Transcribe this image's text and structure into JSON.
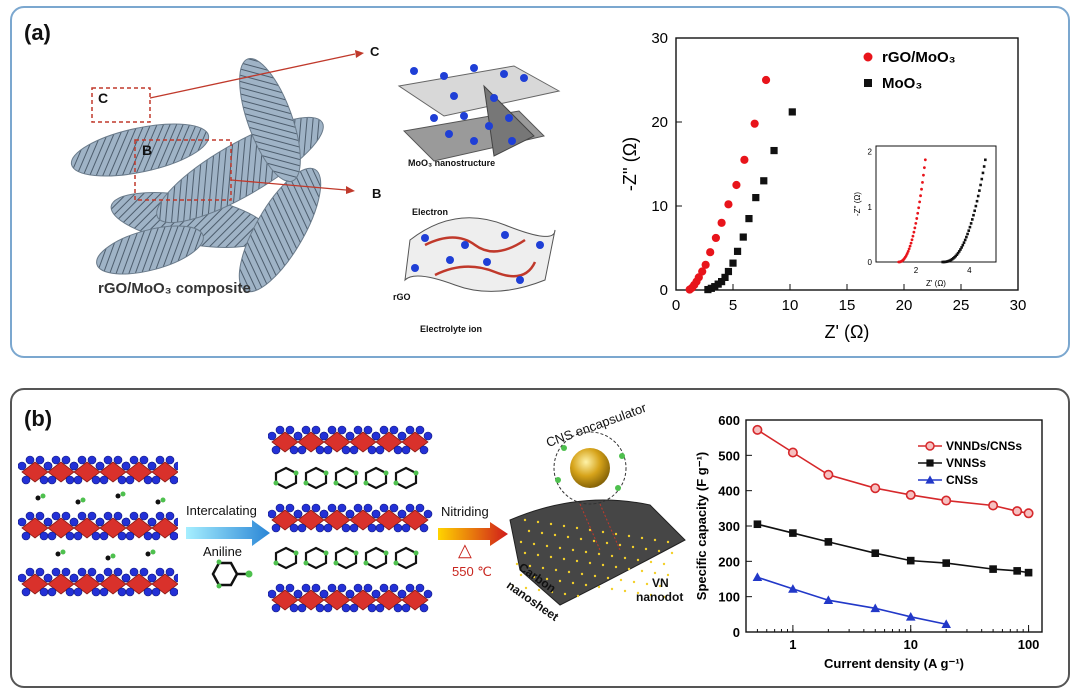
{
  "panel_a": {
    "label": "(a)",
    "composite_caption": "rGO/MoO₃ composite",
    "box_c": "C",
    "box_b": "B",
    "callout_c": "C",
    "callout_b": "B",
    "mo_caption": "MoO₃ nanostructure",
    "electron_label": "Electron",
    "rgo_label": "rGO",
    "ion_label": "Electrolyte ion",
    "inset": {
      "xlabel": "Z' (Ω)",
      "ylabel": "-Z'' (Ω)",
      "xticks": [
        "2",
        "4"
      ],
      "yticks": [
        "0",
        "1",
        "2"
      ]
    }
  },
  "panel_b": {
    "label": "(b)",
    "arrow1_top": "Intercalating",
    "arrow1_bottom": "Aniline",
    "arrow2_top": "Nitriding",
    "delta_symbol": "△",
    "temperature": "550 ℃",
    "cns_label": "CNS encapsulator",
    "carbon_label_1": "Carbon",
    "carbon_label_2": "nanosheet",
    "vn_label_1": "VN",
    "vn_label_2": "nanodot"
  },
  "chart_data": [
    {
      "type": "scatter",
      "xlabel": "Z' (Ω)",
      "ylabel": "-Z'' (Ω)",
      "xlim": [
        0,
        30
      ],
      "ylim": [
        0,
        30
      ],
      "xticks": [
        0,
        5,
        10,
        15,
        20,
        25,
        30
      ],
      "yticks": [
        0,
        10,
        20,
        30
      ],
      "legend_position": "top-right",
      "series": [
        {
          "name": "rGO/MoO₃",
          "color": "#e8141b",
          "marker": "circle",
          "x": [
            1.2,
            1.4,
            1.6,
            1.8,
            2.0,
            2.3,
            2.6,
            3.0,
            3.5,
            4.0,
            4.6,
            5.3,
            6.0,
            6.9,
            7.9
          ],
          "y": [
            0.05,
            0.25,
            0.6,
            1.0,
            1.5,
            2.2,
            3.0,
            4.5,
            6.2,
            8.0,
            10.2,
            12.5,
            15.5,
            19.8,
            25.0
          ]
        },
        {
          "name": "MoO₃",
          "color": "#111111",
          "marker": "square",
          "x": [
            2.8,
            3.1,
            3.4,
            3.7,
            4.0,
            4.3,
            4.6,
            5.0,
            5.4,
            5.9,
            6.4,
            7.0,
            7.7,
            8.6,
            10.2
          ],
          "y": [
            0.05,
            0.2,
            0.4,
            0.7,
            1.0,
            1.5,
            2.2,
            3.2,
            4.6,
            6.3,
            8.5,
            11.0,
            13.0,
            16.6,
            21.2
          ]
        }
      ]
    },
    {
      "type": "line",
      "xlabel": "Current density (A g⁻¹)",
      "ylabel": "Specific capacity (F g⁻¹)",
      "x_scale": "log",
      "xlim": [
        0.4,
        130
      ],
      "ylim": [
        0,
        600
      ],
      "xticks": [
        1,
        10,
        100
      ],
      "yticks": [
        0,
        100,
        200,
        300,
        400,
        500,
        600
      ],
      "legend_position": "top-right",
      "series": [
        {
          "name": "VNNDs/CNSs",
          "color": "#d6282b",
          "marker": "circle",
          "x": [
            0.5,
            1,
            2,
            5,
            10,
            20,
            50,
            80,
            100
          ],
          "y": [
            572,
            508,
            445,
            407,
            388,
            372,
            358,
            342,
            336
          ]
        },
        {
          "name": "VNNSs",
          "color": "#111111",
          "marker": "square",
          "x": [
            0.5,
            1,
            2,
            5,
            10,
            20,
            50,
            80,
            100
          ],
          "y": [
            305,
            280,
            255,
            223,
            202,
            195,
            178,
            173,
            168
          ]
        },
        {
          "name": "CNSs",
          "color": "#2238c8",
          "marker": "triangle",
          "x": [
            0.5,
            1,
            2,
            5,
            10,
            20
          ],
          "y": [
            155,
            122,
            90,
            67,
            43,
            22
          ]
        }
      ]
    }
  ]
}
